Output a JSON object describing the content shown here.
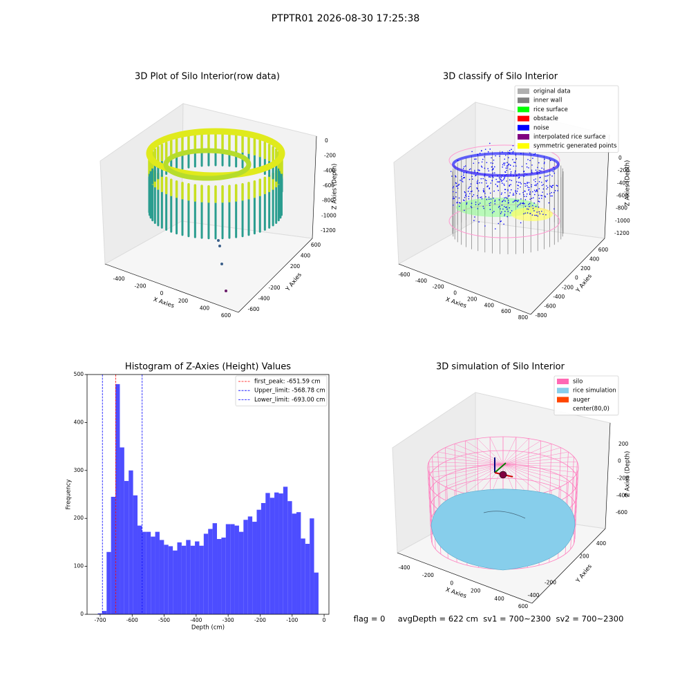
{
  "title": "PTPTR01 2026-08-30 17:25:38",
  "footer": "flag = 0     avgDepth = 622 cm  sv1 = 700~2300  sv2 = 700~2300",
  "chart_data": [
    {
      "type": "scatter3d",
      "title": "3D Plot of Silo Interior(row data)",
      "xlabel": "X Axies",
      "ylabel": "Y Axies",
      "zlabel": "Z Axies (Depth)",
      "xlim": [
        -500,
        650
      ],
      "xticks": [
        -400,
        -200,
        0,
        200,
        400,
        600
      ],
      "ylim": [
        -700,
        650
      ],
      "yticks": [
        -600,
        -400,
        -200,
        200,
        400,
        600
      ],
      "zlim": [
        -1300,
        100
      ],
      "zticks": [
        0,
        -200,
        -400,
        -600,
        -800,
        -1000,
        -1200
      ]
    },
    {
      "type": "scatter3d",
      "title": "3D classify of Silo Interior",
      "xlabel": "X Axies",
      "ylabel": "Y Axies",
      "zlabel": "Z Axies (Depth)",
      "xlim": [
        -700,
        850
      ],
      "xticks": [
        -600,
        -400,
        -200,
        0,
        200,
        400,
        600,
        800
      ],
      "ylim": [
        -900,
        700
      ],
      "yticks": [
        -800,
        -600,
        -400,
        -200,
        0,
        200,
        400,
        600
      ],
      "zlim": [
        -1300,
        100
      ],
      "zticks": [
        0,
        -200,
        -400,
        -600,
        -800,
        -1000,
        -1200
      ],
      "legend_loc": "upper right",
      "legend": [
        {
          "name": "original data",
          "color": "#b0b0b0"
        },
        {
          "name": "inner wall",
          "color": "#808080"
        },
        {
          "name": "rice surface",
          "color": "#00ff00"
        },
        {
          "name": "obstacle",
          "color": "#ff0000"
        },
        {
          "name": "noise",
          "color": "#0000ff"
        },
        {
          "name": "interpolated rice surface",
          "color": "#800080"
        },
        {
          "name": "symmetric generated points",
          "color": "#ffff00"
        }
      ]
    },
    {
      "type": "histogram",
      "title": "Histogram of Z-Axies (Height) Values",
      "xlabel": "Depth (cm)",
      "ylabel": "Frequency",
      "color": "#4d4dff",
      "bins": [
        -707.5,
        -693.7,
        -679.9,
        -666.1,
        -652.3,
        -638.5,
        -624.7,
        -610.9,
        -597.1,
        -583.3,
        -569.5,
        -555.7,
        -541.9,
        -528.1,
        -514.3,
        -500.5,
        -486.7,
        -472.9,
        -459.1,
        -445.3,
        -431.5,
        -417.7,
        -403.9,
        -390.1,
        -376.3,
        -362.5,
        -348.7,
        -334.9,
        -321.1,
        -307.3,
        -293.5,
        -279.7,
        -265.9,
        -252.1,
        -238.3,
        -224.5,
        -210.7,
        -196.9,
        -183.1,
        -169.3,
        -155.5,
        -141.7,
        -127.9,
        -114.1,
        -100.3,
        -86.5,
        -72.7,
        -58.9,
        -45.1,
        -31.3,
        -17.5
      ],
      "values": [
        2,
        7,
        130,
        245,
        480,
        348,
        278,
        300,
        248,
        185,
        172,
        172,
        162,
        172,
        155,
        145,
        142,
        133,
        150,
        143,
        155,
        143,
        152,
        143,
        168,
        178,
        190,
        157,
        160,
        188,
        188,
        185,
        172,
        197,
        204,
        193,
        218,
        232,
        253,
        243,
        254,
        252,
        266,
        236,
        210,
        213,
        158,
        147,
        200,
        87
      ],
      "xlim": [
        -741,
        15
      ],
      "xticks": [
        -700,
        -600,
        -500,
        -400,
        -300,
        -200,
        -100,
        0
      ],
      "ylim": [
        0,
        500
      ],
      "yticks": [
        0,
        100,
        200,
        300,
        400,
        500
      ],
      "legend_loc": "upper right",
      "vlines": [
        {
          "name": "first_peak: -651.59 cm",
          "value": -651.59,
          "color": "#ff0000"
        },
        {
          "name": "Upper_limit: -568.78 cm",
          "value": -568.78,
          "color": "#0000ff"
        },
        {
          "name": "Lower_limit: -693.00 cm",
          "value": -693.0,
          "color": "#0000ff"
        }
      ]
    },
    {
      "type": "surface3d",
      "title": "3D simulation of Silo Interior",
      "xlabel": "X Axies",
      "ylabel": "Y Axies",
      "zlabel": "Z Axies (Depth)",
      "xlim": [
        -500,
        650
      ],
      "xticks": [
        -400,
        -200,
        0,
        200,
        400,
        600
      ],
      "ylim": [
        -500,
        500
      ],
      "yticks": [
        -400,
        -200,
        200,
        400
      ],
      "zlim": [
        -700,
        300
      ],
      "zticks": [
        200,
        0,
        -200,
        -400,
        -600
      ],
      "legend_loc": "upper right",
      "legend": [
        {
          "name": "silo",
          "color": "#ff69b4"
        },
        {
          "name": "rice simulation",
          "color": "#87ceeb"
        },
        {
          "name": "auger",
          "color": "#ff4500"
        },
        {
          "name": "center(80,0)",
          "color": "#ffffff"
        }
      ]
    }
  ]
}
